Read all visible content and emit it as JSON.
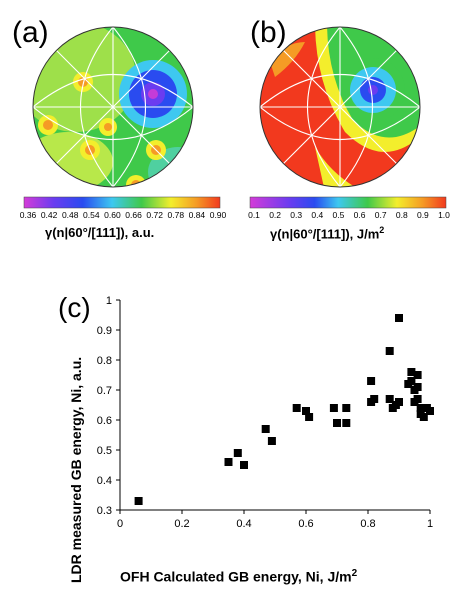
{
  "panel_a": {
    "letter": "(a)",
    "colorbar_ticks": [
      "0.36",
      "0.42",
      "0.48",
      "0.54",
      "0.60",
      "0.66",
      "0.72",
      "0.78",
      "0.84",
      "0.90"
    ],
    "caption": "γ(n|60°/[111]), a.u."
  },
  "panel_b": {
    "letter": "(b)",
    "colorbar_ticks": [
      "0.1",
      "0.2",
      "0.3",
      "0.4",
      "0.5",
      "0.6",
      "0.7",
      "0.8",
      "0.9",
      "1.0"
    ],
    "caption_prefix": "γ(n|60°/[111]), J/m",
    "caption_sup": "2"
  },
  "panel_c": {
    "letter": "(c)",
    "ylabel": "LDR measured GB energy, Ni, a.u.",
    "xlabel_prefix": "OFH Calculated GB energy, Ni, J/m",
    "xlabel_sup": "2"
  },
  "colors": {
    "purple": "#9b2cd8",
    "blue": "#2a4bf0",
    "cyan": "#3ec8f0",
    "green": "#3fc94a",
    "yellow": "#f3ee2c",
    "orange": "#f59b25",
    "red": "#f2391e"
  },
  "chart_data": {
    "type": "scatter",
    "title": "",
    "xlabel": "OFH Calculated GB energy, Ni, J/m2",
    "ylabel": "LDR measured GB energy, Ni, a.u.",
    "xlim": [
      0,
      1
    ],
    "ylim": [
      0.3,
      1
    ],
    "xticks": [
      "0",
      "0.2",
      "0.4",
      "0.6",
      "0.8",
      "1"
    ],
    "yticks": [
      "0.3",
      "0.4",
      "0.5",
      "0.6",
      "0.7",
      "0.8",
      "0.9",
      "1"
    ],
    "grid": false,
    "points": [
      {
        "x": 0.06,
        "y": 0.33
      },
      {
        "x": 0.35,
        "y": 0.46
      },
      {
        "x": 0.38,
        "y": 0.49
      },
      {
        "x": 0.4,
        "y": 0.45
      },
      {
        "x": 0.47,
        "y": 0.57
      },
      {
        "x": 0.49,
        "y": 0.53
      },
      {
        "x": 0.57,
        "y": 0.64
      },
      {
        "x": 0.6,
        "y": 0.63
      },
      {
        "x": 0.61,
        "y": 0.61
      },
      {
        "x": 0.69,
        "y": 0.64
      },
      {
        "x": 0.7,
        "y": 0.59
      },
      {
        "x": 0.73,
        "y": 0.64
      },
      {
        "x": 0.73,
        "y": 0.59
      },
      {
        "x": 0.81,
        "y": 0.73
      },
      {
        "x": 0.81,
        "y": 0.66
      },
      {
        "x": 0.82,
        "y": 0.67
      },
      {
        "x": 0.87,
        "y": 0.83
      },
      {
        "x": 0.87,
        "y": 0.67
      },
      {
        "x": 0.88,
        "y": 0.64
      },
      {
        "x": 0.89,
        "y": 0.65
      },
      {
        "x": 0.9,
        "y": 0.94
      },
      {
        "x": 0.9,
        "y": 0.66
      },
      {
        "x": 0.93,
        "y": 0.72
      },
      {
        "x": 0.94,
        "y": 0.73
      },
      {
        "x": 0.94,
        "y": 0.76
      },
      {
        "x": 0.95,
        "y": 0.7
      },
      {
        "x": 0.95,
        "y": 0.66
      },
      {
        "x": 0.96,
        "y": 0.75
      },
      {
        "x": 0.96,
        "y": 0.71
      },
      {
        "x": 0.96,
        "y": 0.67
      },
      {
        "x": 0.97,
        "y": 0.64
      },
      {
        "x": 0.97,
        "y": 0.62
      },
      {
        "x": 0.98,
        "y": 0.61
      },
      {
        "x": 0.99,
        "y": 0.64
      },
      {
        "x": 1.0,
        "y": 0.63
      }
    ]
  }
}
